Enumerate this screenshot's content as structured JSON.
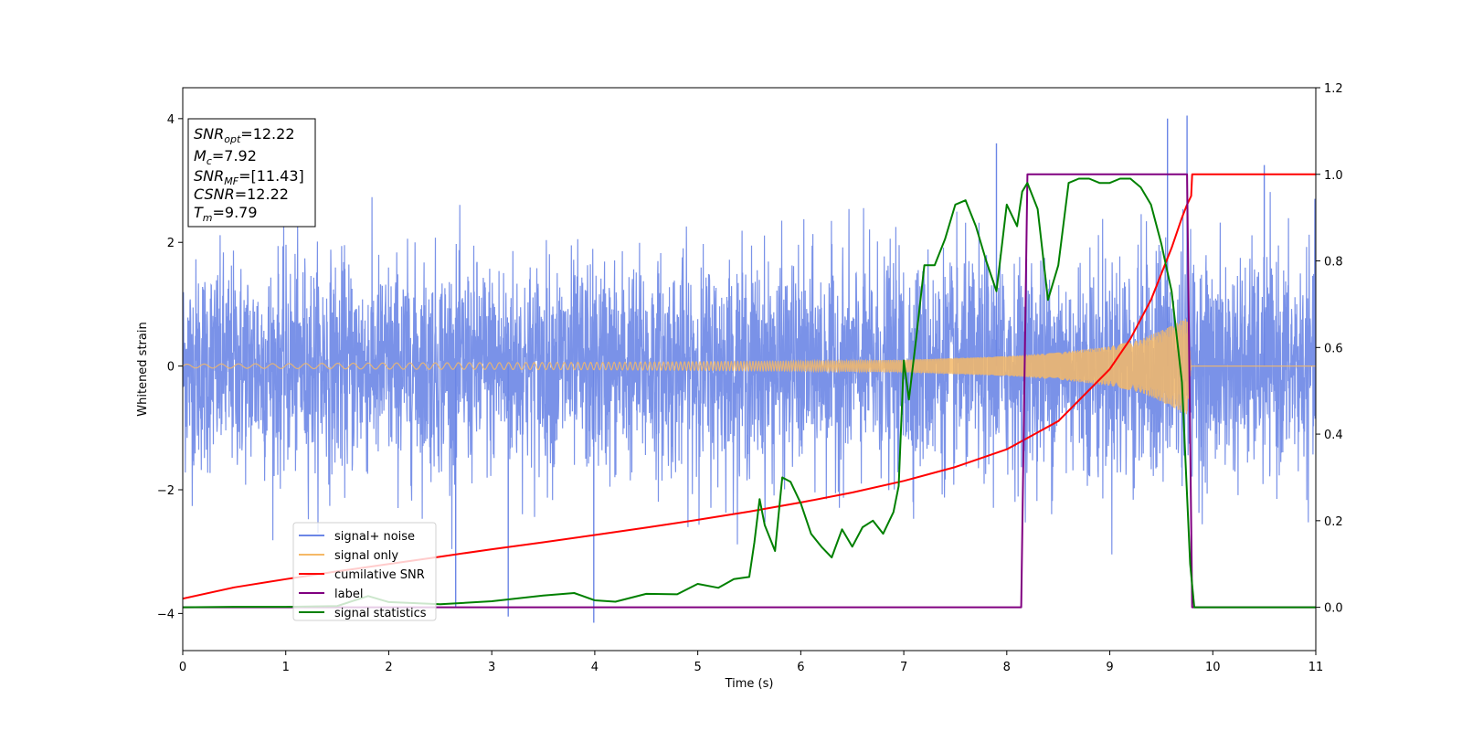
{
  "chart_data": {
    "type": "line",
    "title": "",
    "xlabel": "Time (s)",
    "ylabel": "Whitened strain",
    "xlim": [
      0,
      11
    ],
    "ylim": [
      -4.6,
      4.5
    ],
    "y2lim": [
      -0.1,
      1.2
    ],
    "grid": false,
    "legend_position": "lower-left",
    "x_ticks": [
      0,
      1,
      2,
      3,
      4,
      5,
      6,
      7,
      8,
      9,
      10,
      11
    ],
    "x_tick_labels": [
      "0",
      "1",
      "2",
      "3",
      "4",
      "5",
      "6",
      "7",
      "8",
      "9",
      "10",
      "11"
    ],
    "y_ticks": [
      -4,
      -2,
      0,
      2,
      4
    ],
    "y_tick_labels": [
      "−4",
      "−2",
      "0",
      "2",
      "4"
    ],
    "y2_ticks": [
      0.0,
      0.2,
      0.4,
      0.6,
      0.8,
      1.0,
      1.2
    ],
    "y2_tick_labels": [
      "0.0",
      "0.2",
      "0.4",
      "0.6",
      "0.8",
      "1.0",
      "1.2"
    ],
    "stats_box": [
      {
        "main": "SNR",
        "sub": "opt",
        "value": "=12.22"
      },
      {
        "main": "M",
        "sub": "c",
        "value": "=7.92"
      },
      {
        "main": "SNR",
        "sub": "MF",
        "value": "=[11.43]"
      },
      {
        "main": "CSNR",
        "sub": "",
        "value": "=12.22"
      },
      {
        "main": "T",
        "sub": "m",
        "value": "=9.79"
      }
    ],
    "series": [
      {
        "name": "signal+ noise",
        "axis": "left",
        "color": "#6b86e6",
        "noise_envelope": {
          "typical_range": [
            -2.3,
            2.3
          ],
          "extreme_range": [
            -4.15,
            4.05
          ]
        },
        "peaks": [
          {
            "x": 3.99,
            "y": -4.15
          },
          {
            "x": 9.56,
            "y": 4.0
          },
          {
            "x": 9.75,
            "y": 4.05
          },
          {
            "x": 7.9,
            "y": 3.6
          },
          {
            "x": 10.5,
            "y": 3.25
          },
          {
            "x": 3.16,
            "y": -4.05
          },
          {
            "x": 2.65,
            "y": -3.9
          }
        ]
      },
      {
        "name": "signal only",
        "axis": "left",
        "color": "#f5b967",
        "amplitude_envelope": {
          "x": [
            0,
            1,
            2,
            3,
            4,
            5,
            6,
            7,
            8,
            8.5,
            9,
            9.3,
            9.5,
            9.65,
            9.75,
            9.79,
            11
          ],
          "y": [
            0.03,
            0.04,
            0.05,
            0.055,
            0.06,
            0.07,
            0.08,
            0.1,
            0.16,
            0.22,
            0.32,
            0.43,
            0.58,
            0.7,
            0.8,
            0.0,
            0.0
          ]
        }
      },
      {
        "name": "cumilative SNR",
        "axis": "right",
        "color": "#ff0000",
        "x": [
          0,
          0.5,
          1,
          1.5,
          2,
          2.5,
          3,
          3.5,
          4,
          4.5,
          5,
          5.5,
          6,
          6.5,
          7,
          7.5,
          8,
          8.5,
          9,
          9.2,
          9.4,
          9.6,
          9.7,
          9.75,
          9.79,
          9.8,
          11
        ],
        "y": [
          0.02,
          0.046,
          0.065,
          0.083,
          0.1,
          0.117,
          0.134,
          0.15,
          0.167,
          0.184,
          0.202,
          0.221,
          0.242,
          0.265,
          0.292,
          0.324,
          0.365,
          0.43,
          0.55,
          0.62,
          0.71,
          0.83,
          0.9,
          0.93,
          0.95,
          1.0,
          1.0
        ]
      },
      {
        "name": "label",
        "axis": "right",
        "color": "#800080",
        "x": [
          0,
          8.14,
          8.2,
          9.75,
          9.8,
          11
        ],
        "y": [
          0,
          0,
          1,
          1,
          0,
          0
        ]
      },
      {
        "name": "signal statistics",
        "axis": "right",
        "color": "#008000",
        "x": [
          0,
          0.5,
          1,
          1.5,
          1.8,
          2.0,
          2.5,
          3.0,
          3.5,
          3.8,
          4.0,
          4.2,
          4.5,
          4.8,
          5.0,
          5.2,
          5.35,
          5.5,
          5.55,
          5.6,
          5.65,
          5.75,
          5.82,
          5.9,
          6.0,
          6.1,
          6.2,
          6.3,
          6.4,
          6.5,
          6.6,
          6.7,
          6.8,
          6.9,
          6.95,
          7.0,
          7.05,
          7.12,
          7.2,
          7.3,
          7.4,
          7.5,
          7.6,
          7.7,
          7.8,
          7.9,
          8.0,
          8.1,
          8.15,
          8.2,
          8.3,
          8.4,
          8.5,
          8.6,
          8.7,
          8.8,
          8.9,
          9.0,
          9.1,
          9.2,
          9.3,
          9.4,
          9.5,
          9.6,
          9.7,
          9.78,
          9.82,
          10.0,
          10.5,
          11
        ],
        "y": [
          0.0,
          0.001,
          0.001,
          0.003,
          0.026,
          0.012,
          0.007,
          0.014,
          0.027,
          0.033,
          0.016,
          0.013,
          0.031,
          0.03,
          0.054,
          0.045,
          0.065,
          0.07,
          0.15,
          0.25,
          0.19,
          0.13,
          0.3,
          0.29,
          0.24,
          0.17,
          0.14,
          0.115,
          0.18,
          0.14,
          0.185,
          0.2,
          0.17,
          0.22,
          0.28,
          0.57,
          0.48,
          0.62,
          0.79,
          0.79,
          0.85,
          0.93,
          0.94,
          0.88,
          0.8,
          0.73,
          0.93,
          0.88,
          0.96,
          0.98,
          0.92,
          0.71,
          0.79,
          0.98,
          0.99,
          0.99,
          0.98,
          0.98,
          0.99,
          0.99,
          0.97,
          0.93,
          0.84,
          0.73,
          0.52,
          0.1,
          0.0,
          0.0,
          0.0,
          0.0
        ]
      }
    ]
  }
}
